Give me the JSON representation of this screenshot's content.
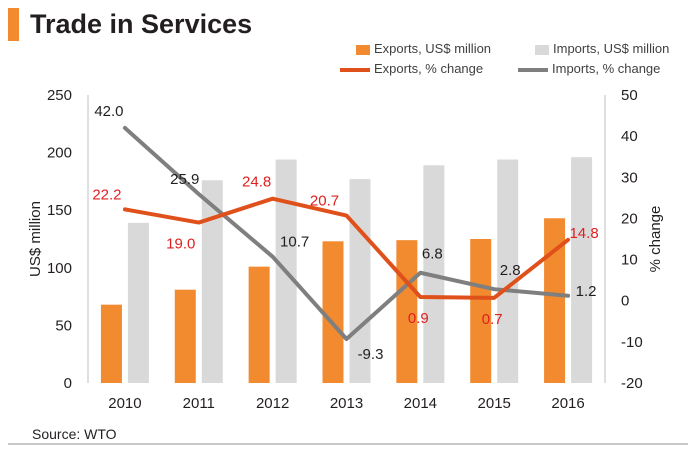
{
  "title": "Trade in Services",
  "source": "Source: WTO",
  "colors": {
    "exports_bar": "#f28a30",
    "imports_bar": "#d9d9d9",
    "exports_line": "#e0501b",
    "imports_line": "#7f7f7f",
    "exports_label": "#e02020",
    "imports_label": "#231f20",
    "title_accent": "#f28a30"
  },
  "legend": {
    "exports_bar": "Exports, US$ million",
    "imports_bar": "Imports, US$ million",
    "exports_line": "Exports, % change",
    "imports_line": "Imports, % change"
  },
  "chart_data": {
    "type": "bar",
    "categories": [
      "2010",
      "2011",
      "2012",
      "2013",
      "2014",
      "2015",
      "2016"
    ],
    "title": "Trade in Services",
    "ylabel": "US$ million",
    "y2label": "% change",
    "ylim": [
      0,
      250
    ],
    "y2lim": [
      -20,
      50
    ],
    "yticks": [
      0,
      50,
      100,
      150,
      200,
      250
    ],
    "y2ticks": [
      -20,
      -10,
      0,
      10,
      20,
      30,
      40,
      50
    ],
    "series": [
      {
        "name": "Exports, US$ million",
        "type": "bar",
        "axis": "left",
        "values": [
          68,
          81,
          101,
          123,
          124,
          125,
          143
        ]
      },
      {
        "name": "Imports, US$ million",
        "type": "bar",
        "axis": "left",
        "values": [
          139,
          176,
          194,
          177,
          189,
          194,
          196
        ]
      },
      {
        "name": "Exports, % change",
        "type": "line",
        "axis": "right",
        "values": [
          22.2,
          19.0,
          24.8,
          20.7,
          0.9,
          0.7,
          14.8
        ],
        "labels": [
          "22.2",
          "19.0",
          "24.8",
          "20.7",
          "0.9",
          "0.7",
          "14.8"
        ]
      },
      {
        "name": "Imports, % change",
        "type": "line",
        "axis": "right",
        "values": [
          42.0,
          25.9,
          10.7,
          -9.3,
          6.8,
          2.8,
          1.2
        ],
        "labels": [
          "42.0",
          "25.9",
          "10.7",
          "-9.3",
          "6.8",
          "2.8",
          "1.2"
        ]
      }
    ]
  }
}
